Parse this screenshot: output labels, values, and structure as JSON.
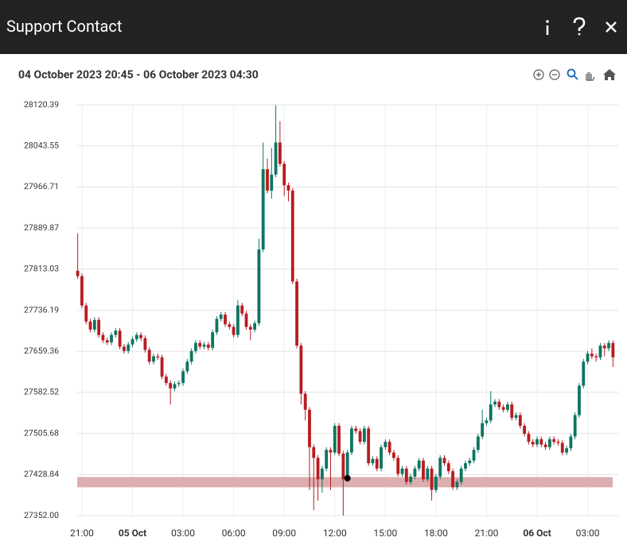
{
  "header": {
    "title": "Support Contact"
  },
  "chart_data": {
    "type": "candlestick",
    "subtitle": "04 October 2023 20:45 - 06 October 2023 04:30",
    "up_color": "#0d7560",
    "down_color": "#b81c22",
    "xlim": [
      -0.5,
      127.5
    ],
    "xticks": [
      {
        "value": 1,
        "label": "21:00"
      },
      {
        "value": 13,
        "label": "05 Oct"
      },
      {
        "value": 25,
        "label": "03:00"
      },
      {
        "value": 37,
        "label": "06:00"
      },
      {
        "value": 49,
        "label": "09:00"
      },
      {
        "value": 61,
        "label": "12:00"
      },
      {
        "value": 73,
        "label": "15:00"
      },
      {
        "value": 85,
        "label": "18:00"
      },
      {
        "value": 97,
        "label": "21:00"
      },
      {
        "value": 109,
        "label": "06 Oct"
      },
      {
        "value": 121,
        "label": "03:00"
      }
    ],
    "ylim": [
      27352,
      28120.39
    ],
    "yticks": [
      {
        "value": 27352,
        "label": "27352.00"
      },
      27428.84,
      27505.68,
      27582.52,
      27659.36,
      27736.19,
      27813.03,
      27889.87,
      27966.71,
      28043.55,
      28120.39
    ],
    "grid": true,
    "open": [
      27810,
      27800,
      27745,
      27715,
      27700,
      27718,
      27690,
      27680,
      27676,
      27690,
      27698,
      27668,
      27660,
      27672,
      27682,
      27690,
      27684,
      27662,
      27640,
      27650,
      27648,
      27612,
      27600,
      27590,
      27598,
      27600,
      27622,
      27640,
      27660,
      27675,
      27668,
      27672,
      27666,
      27695,
      27720,
      27728,
      27710,
      27705,
      27690,
      27745,
      27730,
      27705,
      27700,
      27712,
      27850,
      28000,
      27960,
      27990,
      28050,
      28010,
      27970,
      27960,
      27790,
      27670,
      27580,
      27550,
      27480,
      27460,
      27420,
      27440,
      27475,
      27470,
      27520,
      27468,
      27420,
      27470,
      27515,
      27510,
      27490,
      27515,
      27450,
      27458,
      27440,
      27480,
      27490,
      27470,
      27460,
      27430,
      27440,
      27415,
      27425,
      27440,
      27455,
      27420,
      27440,
      27400,
      27425,
      27460,
      27450,
      27435,
      27405,
      27415,
      27440,
      27450,
      27455,
      27475,
      27500,
      27525,
      27530,
      27560,
      27565,
      27555,
      27550,
      27560,
      27535,
      27540,
      27520,
      27505,
      27490,
      27485,
      27495,
      27485,
      27480,
      27495,
      27490,
      27488,
      27470,
      27478,
      27500,
      27540,
      27595,
      27640,
      27655,
      27650,
      27648,
      27670,
      27665,
      27675
    ],
    "high": [
      27880,
      27805,
      27750,
      27720,
      27723,
      27723,
      27695,
      27685,
      27695,
      27703,
      27703,
      27673,
      27677,
      27687,
      27695,
      27695,
      27689,
      27667,
      27655,
      27655,
      27653,
      27617,
      27605,
      27603,
      27605,
      27627,
      27645,
      27665,
      27680,
      27680,
      27677,
      27677,
      27700,
      27725,
      27733,
      27733,
      27715,
      27710,
      27755,
      27750,
      27735,
      27710,
      27717,
      27870,
      28050,
      28020,
      28040,
      28120,
      28090,
      28015,
      27975,
      27965,
      27795,
      27675,
      27585,
      27555,
      27485,
      27465,
      27445,
      27480,
      27480,
      27525,
      27525,
      27473,
      27475,
      27520,
      27520,
      27515,
      27520,
      27520,
      27463,
      27463,
      27485,
      27495,
      27495,
      27475,
      27465,
      27445,
      27445,
      27430,
      27445,
      27460,
      27460,
      27445,
      27445,
      27430,
      27465,
      27465,
      27455,
      27440,
      27420,
      27445,
      27455,
      27460,
      27480,
      27505,
      27550,
      27535,
      27585,
      27570,
      27570,
      27560,
      27565,
      27565,
      27545,
      27545,
      27525,
      27510,
      27495,
      27500,
      27500,
      27490,
      27500,
      27500,
      27495,
      27493,
      27483,
      27505,
      27545,
      27600,
      27645,
      27660,
      27665,
      27655,
      27675,
      27675,
      27680,
      27680
    ],
    "low": [
      27795,
      27740,
      27710,
      27695,
      27695,
      27685,
      27675,
      27671,
      27671,
      27685,
      27663,
      27655,
      27655,
      27667,
      27677,
      27679,
      27657,
      27635,
      27635,
      27643,
      27607,
      27595,
      27560,
      27585,
      27593,
      27595,
      27617,
      27635,
      27655,
      27663,
      27663,
      27661,
      27661,
      27690,
      27715,
      27705,
      27700,
      27685,
      27685,
      27725,
      27700,
      27680,
      27695,
      27707,
      27845,
      27955,
      27945,
      27985,
      28005,
      27950,
      27940,
      27785,
      27665,
      27560,
      27530,
      27400,
      27362,
      27380,
      27395,
      27435,
      27400,
      27465,
      27463,
      27352,
      27415,
      27465,
      27505,
      27485,
      27485,
      27445,
      27445,
      27435,
      27435,
      27475,
      27465,
      27455,
      27425,
      27425,
      27410,
      27410,
      27420,
      27435,
      27415,
      27415,
      27380,
      27395,
      27420,
      27445,
      27430,
      27400,
      27400,
      27410,
      27435,
      27445,
      27450,
      27470,
      27495,
      27520,
      27525,
      27555,
      27550,
      27545,
      27545,
      27530,
      27530,
      27515,
      27500,
      27485,
      27480,
      27480,
      27480,
      27475,
      27475,
      27485,
      27483,
      27465,
      27465,
      27473,
      27495,
      27535,
      27590,
      27635,
      27645,
      27640,
      27643,
      27650,
      27660,
      27630
    ],
    "close": [
      27800,
      27745,
      27715,
      27700,
      27718,
      27690,
      27680,
      27676,
      27690,
      27698,
      27668,
      27660,
      27672,
      27682,
      27690,
      27684,
      27662,
      27640,
      27650,
      27648,
      27612,
      27600,
      27590,
      27598,
      27600,
      27622,
      27640,
      27660,
      27675,
      27668,
      27672,
      27666,
      27695,
      27720,
      27728,
      27710,
      27705,
      27690,
      27745,
      27730,
      27705,
      27700,
      27712,
      27850,
      28000,
      27960,
      27990,
      28050,
      28010,
      27970,
      27960,
      27790,
      27670,
      27580,
      27550,
      27480,
      27460,
      27420,
      27440,
      27475,
      27470,
      27520,
      27468,
      27420,
      27470,
      27515,
      27510,
      27490,
      27515,
      27450,
      27458,
      27440,
      27480,
      27490,
      27470,
      27460,
      27430,
      27440,
      27415,
      27425,
      27440,
      27455,
      27420,
      27440,
      27400,
      27425,
      27460,
      27450,
      27435,
      27405,
      27415,
      27440,
      27450,
      27455,
      27475,
      27500,
      27525,
      27530,
      27560,
      27565,
      27555,
      27550,
      27560,
      27535,
      27540,
      27520,
      27505,
      27490,
      27485,
      27495,
      27485,
      27480,
      27495,
      27490,
      27488,
      27470,
      27478,
      27500,
      27540,
      27595,
      27640,
      27655,
      27650,
      27648,
      27670,
      27665,
      27675,
      27648
    ],
    "band": {
      "from": 27405,
      "to": 27424,
      "color": "#dcaeae"
    },
    "marker": {
      "x": 64,
      "y": 27422
    }
  }
}
